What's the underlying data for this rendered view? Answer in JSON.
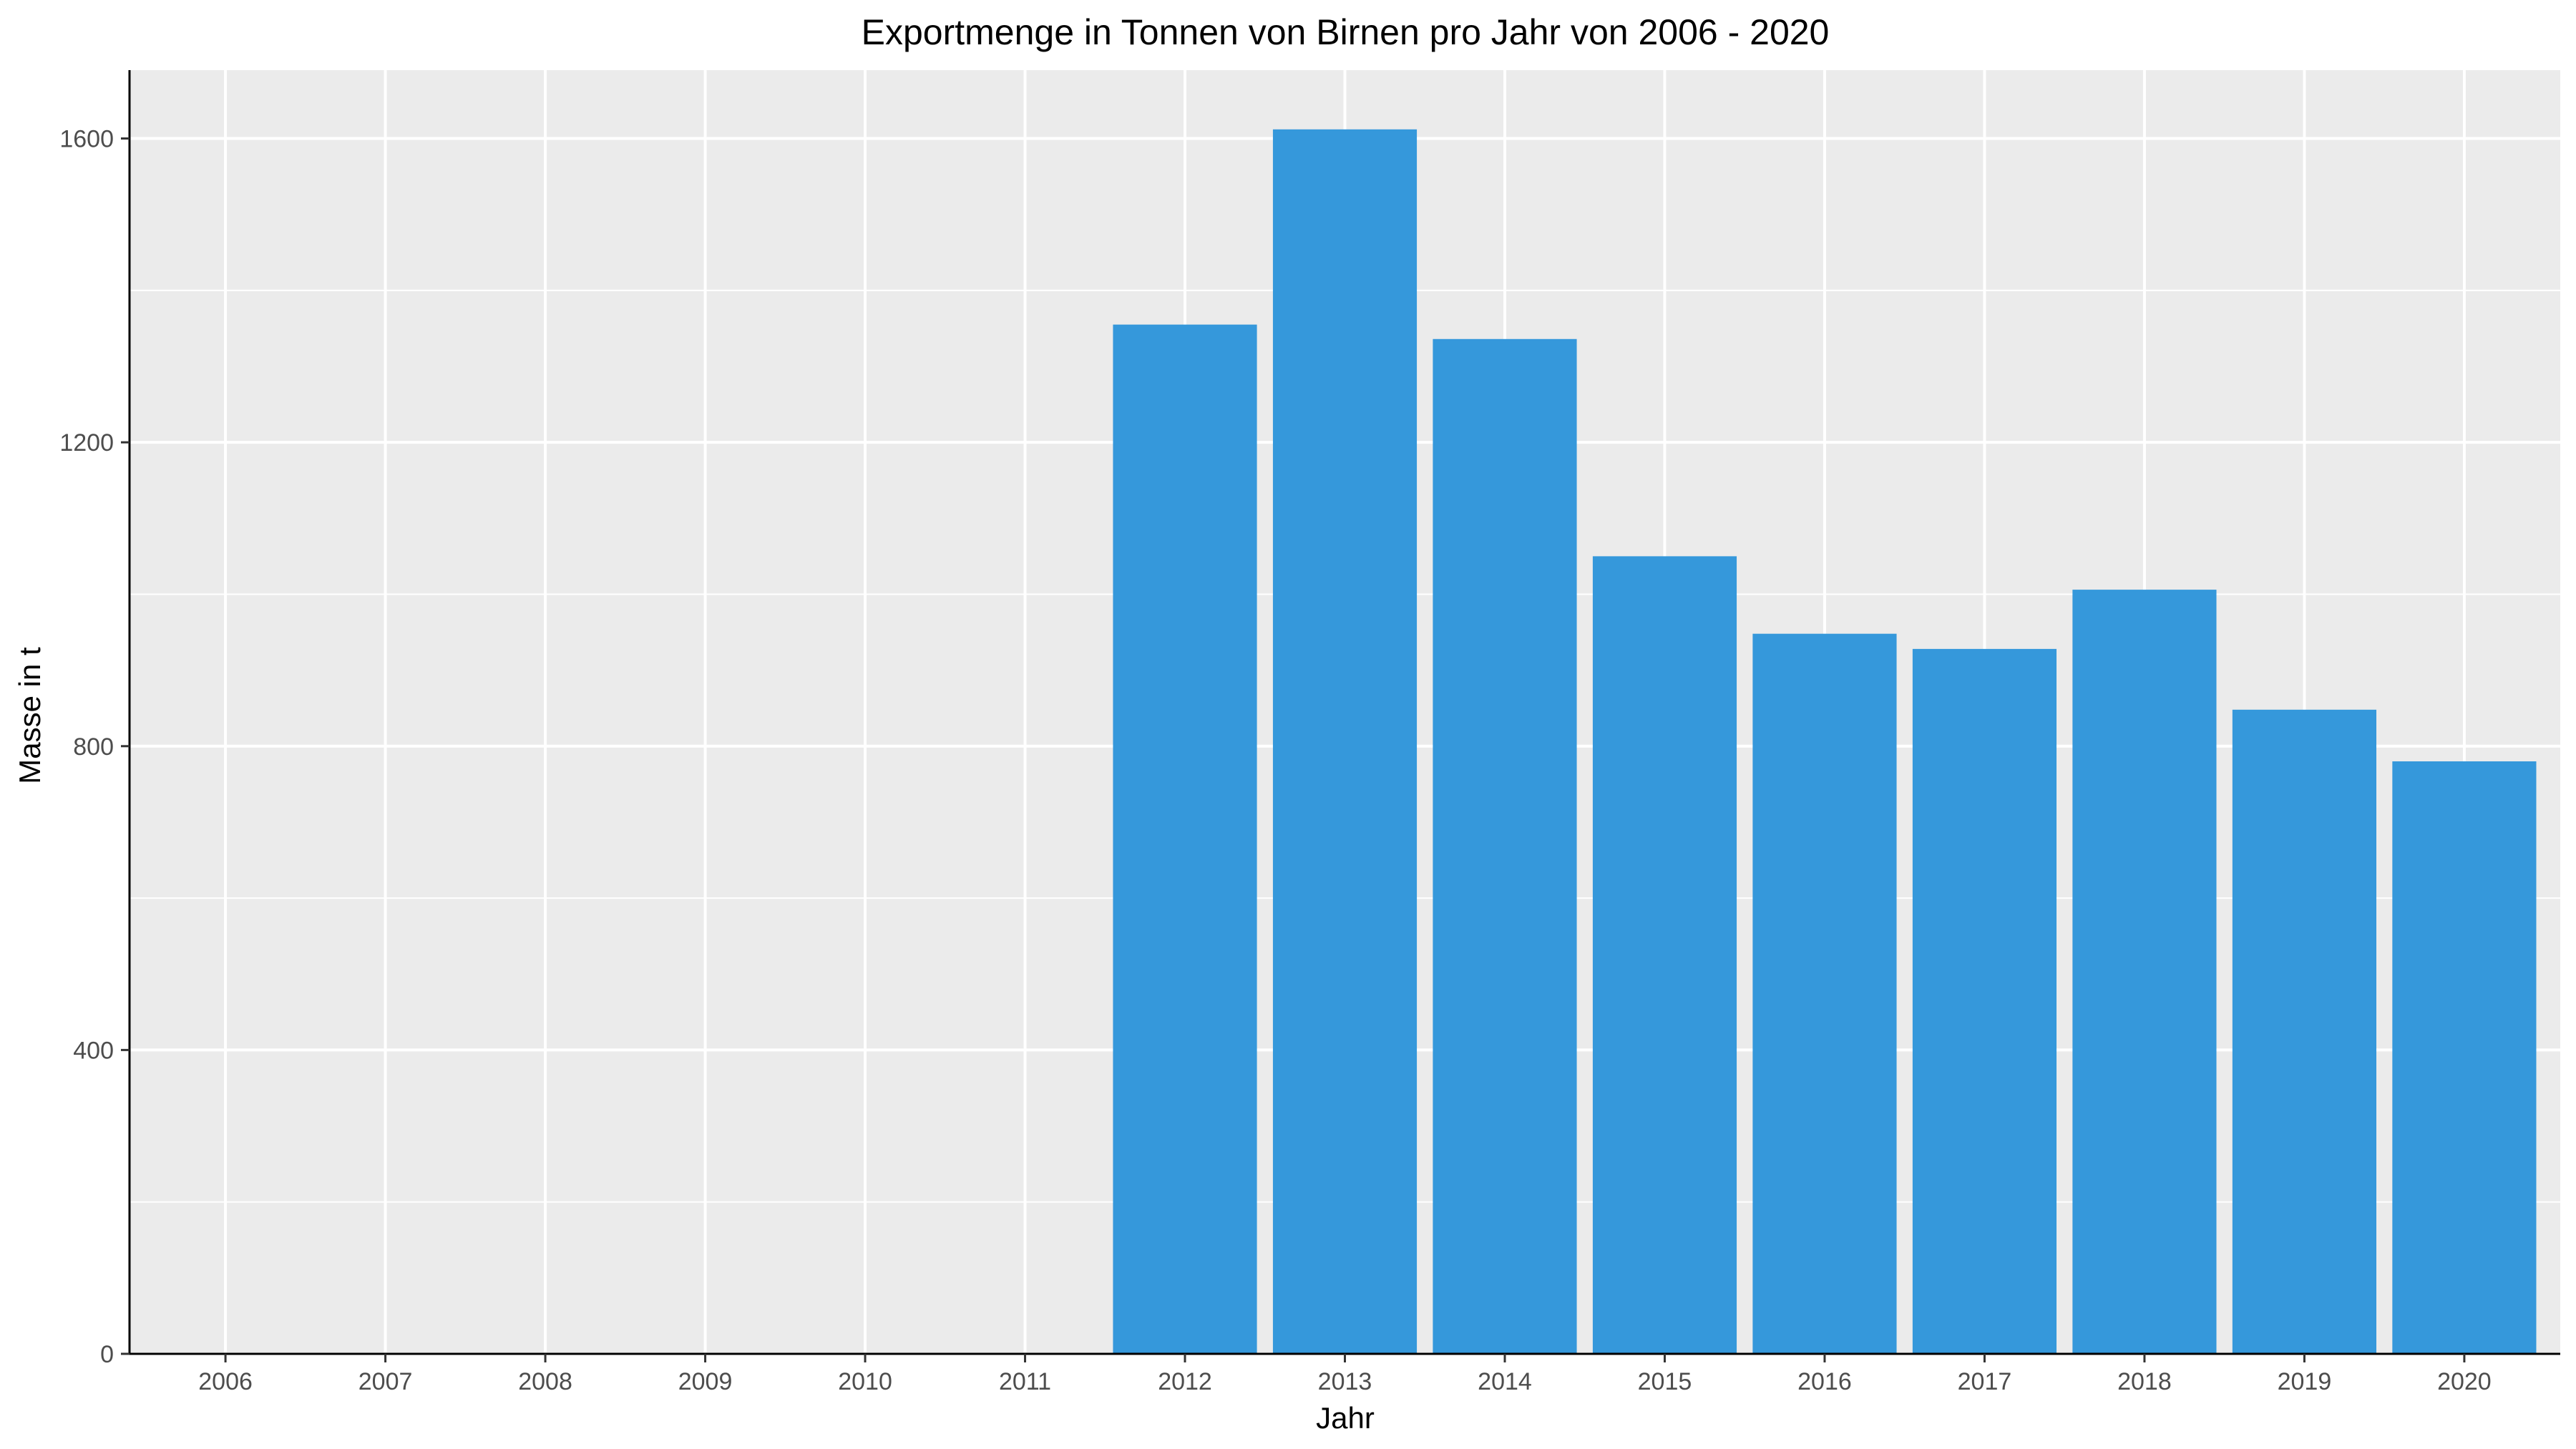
{
  "chart_data": {
    "type": "bar",
    "title": "Exportmenge in Tonnen von Birnen pro Jahr von 2006 - 2020",
    "xlabel": "Jahr",
    "ylabel": "Masse in t",
    "categories": [
      "2006",
      "2007",
      "2008",
      "2009",
      "2010",
      "2011",
      "2012",
      "2013",
      "2014",
      "2015",
      "2016",
      "2017",
      "2018",
      "2019",
      "2020"
    ],
    "values": [
      null,
      null,
      null,
      null,
      null,
      null,
      1355,
      1612,
      1336,
      1050,
      948,
      928,
      1006,
      848,
      780
    ],
    "ylim": [
      0,
      1690
    ],
    "yticks": [
      0,
      400,
      800,
      1200,
      1600
    ],
    "grid": true,
    "legend": "none",
    "colors": {
      "bar": "#3598DB",
      "panel": "#EBEBEB",
      "grid": "#FFFFFF",
      "axis": "#000000",
      "tick_text": "#4D4D4D"
    }
  }
}
